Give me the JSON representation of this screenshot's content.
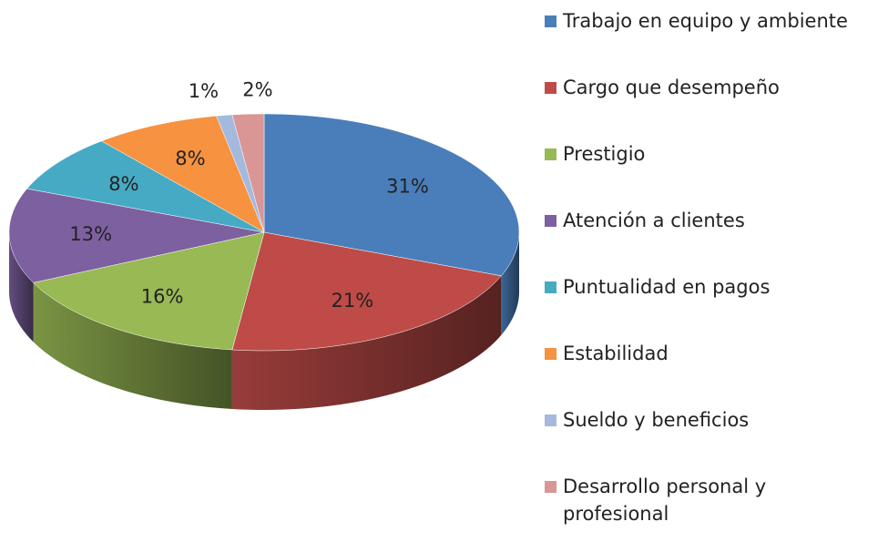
{
  "chart_data": {
    "type": "pie",
    "categories": [
      "Trabajo en equipo y ambiente",
      "Cargo que desempeño",
      "Prestigio",
      "Atención a clientes",
      "Puntualidad en pagos",
      "Estabilidad",
      "Sueldo y beneficios",
      "Desarrollo personal y profesional"
    ],
    "values": [
      31,
      21,
      16,
      13,
      8,
      8,
      1,
      2
    ],
    "value_labels": [
      "31%",
      "21%",
      "16%",
      "13%",
      "8%",
      "8%",
      "1%",
      "2%"
    ],
    "colors": [
      "#4a7ebb",
      "#be4b48",
      "#98b954",
      "#7d60a0",
      "#46aac5",
      "#f69240",
      "#a5b9df",
      "#d99694"
    ],
    "legend": "right"
  }
}
